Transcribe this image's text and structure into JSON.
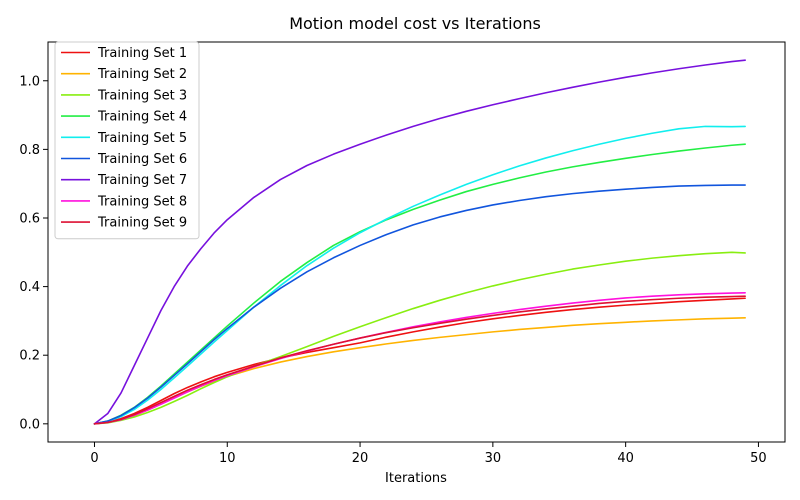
{
  "chart_data": {
    "type": "line",
    "title": "Motion model cost vs Iterations",
    "xlabel": "Iterations",
    "ylabel": "",
    "xlim": [
      -3.5,
      52
    ],
    "ylim": [
      -0.053,
      1.113
    ],
    "xticks": [
      0,
      10,
      20,
      30,
      40,
      50
    ],
    "yticks": [
      0.0,
      0.2,
      0.4,
      0.6,
      0.8,
      1.0
    ],
    "ytick_labels": [
      "0.0",
      "0.2",
      "0.4",
      "0.6",
      "0.8",
      "1.0"
    ],
    "grid": false,
    "legend_position": "top-left",
    "x": [
      0,
      1,
      2,
      3,
      4,
      5,
      6,
      7,
      8,
      9,
      10,
      12,
      14,
      16,
      18,
      20,
      22,
      24,
      26,
      28,
      30,
      32,
      34,
      36,
      38,
      40,
      42,
      44,
      46,
      48,
      49
    ],
    "series": [
      {
        "name": "Training Set 1",
        "color": "#ee1111",
        "values": [
          0.0,
          0.005,
          0.015,
          0.03,
          0.048,
          0.068,
          0.088,
          0.106,
          0.122,
          0.137,
          0.15,
          0.173,
          0.192,
          0.208,
          0.222,
          0.236,
          0.253,
          0.268,
          0.282,
          0.295,
          0.306,
          0.316,
          0.325,
          0.333,
          0.34,
          0.346,
          0.351,
          0.356,
          0.36,
          0.364,
          0.366
        ]
      },
      {
        "name": "Training Set 2",
        "color": "#ffb300",
        "values": [
          0.0,
          0.004,
          0.012,
          0.024,
          0.04,
          0.058,
          0.076,
          0.093,
          0.109,
          0.124,
          0.138,
          0.161,
          0.18,
          0.196,
          0.21,
          0.222,
          0.233,
          0.243,
          0.252,
          0.26,
          0.268,
          0.275,
          0.281,
          0.287,
          0.292,
          0.296,
          0.3,
          0.303,
          0.306,
          0.308,
          0.309
        ]
      },
      {
        "name": "Training Set 3",
        "color": "#88ee11",
        "values": [
          0.0,
          0.003,
          0.01,
          0.02,
          0.033,
          0.048,
          0.065,
          0.083,
          0.102,
          0.12,
          0.137,
          0.168,
          0.196,
          0.225,
          0.255,
          0.283,
          0.31,
          0.336,
          0.36,
          0.382,
          0.402,
          0.42,
          0.436,
          0.451,
          0.463,
          0.474,
          0.483,
          0.49,
          0.496,
          0.5,
          0.498
        ]
      },
      {
        "name": "Training Set 4",
        "color": "#22ee44",
        "values": [
          0.0,
          0.008,
          0.025,
          0.048,
          0.077,
          0.11,
          0.145,
          0.18,
          0.215,
          0.25,
          0.285,
          0.352,
          0.415,
          0.47,
          0.52,
          0.56,
          0.595,
          0.625,
          0.652,
          0.677,
          0.698,
          0.717,
          0.734,
          0.749,
          0.762,
          0.774,
          0.785,
          0.795,
          0.804,
          0.812,
          0.815
        ]
      },
      {
        "name": "Training Set 5",
        "color": "#11eeee",
        "values": [
          0.0,
          0.007,
          0.021,
          0.042,
          0.069,
          0.1,
          0.134,
          0.168,
          0.203,
          0.238,
          0.272,
          0.34,
          0.403,
          0.461,
          0.512,
          0.557,
          0.597,
          0.634,
          0.667,
          0.698,
          0.726,
          0.752,
          0.775,
          0.796,
          0.815,
          0.832,
          0.847,
          0.86,
          0.867,
          0.866,
          0.867
        ]
      },
      {
        "name": "Training Set 6",
        "color": "#1155dd",
        "values": [
          0.0,
          0.008,
          0.024,
          0.047,
          0.075,
          0.107,
          0.141,
          0.175,
          0.21,
          0.245,
          0.278,
          0.34,
          0.395,
          0.443,
          0.484,
          0.52,
          0.552,
          0.58,
          0.603,
          0.622,
          0.638,
          0.651,
          0.662,
          0.671,
          0.678,
          0.684,
          0.689,
          0.693,
          0.695,
          0.696,
          0.696
        ]
      },
      {
        "name": "Training Set 7",
        "color": "#7711dd",
        "values": [
          0.0,
          0.03,
          0.09,
          0.17,
          0.25,
          0.33,
          0.4,
          0.46,
          0.51,
          0.556,
          0.595,
          0.66,
          0.712,
          0.753,
          0.786,
          0.815,
          0.842,
          0.867,
          0.89,
          0.911,
          0.93,
          0.948,
          0.965,
          0.981,
          0.996,
          1.01,
          1.023,
          1.035,
          1.046,
          1.056,
          1.06
        ]
      },
      {
        "name": "Training Set 8",
        "color": "#ff11dd",
        "values": [
          0.0,
          0.004,
          0.012,
          0.025,
          0.04,
          0.057,
          0.075,
          0.093,
          0.11,
          0.126,
          0.14,
          0.166,
          0.19,
          0.212,
          0.232,
          0.25,
          0.267,
          0.283,
          0.297,
          0.31,
          0.322,
          0.333,
          0.343,
          0.352,
          0.36,
          0.367,
          0.372,
          0.376,
          0.379,
          0.381,
          0.382
        ]
      },
      {
        "name": "Training Set 9",
        "color": "#dd1133",
        "values": [
          0.0,
          0.004,
          0.013,
          0.027,
          0.044,
          0.062,
          0.08,
          0.098,
          0.114,
          0.129,
          0.143,
          0.168,
          0.192,
          0.213,
          0.232,
          0.25,
          0.266,
          0.28,
          0.293,
          0.305,
          0.316,
          0.326,
          0.335,
          0.343,
          0.351,
          0.357,
          0.362,
          0.366,
          0.369,
          0.371,
          0.372
        ]
      }
    ]
  }
}
